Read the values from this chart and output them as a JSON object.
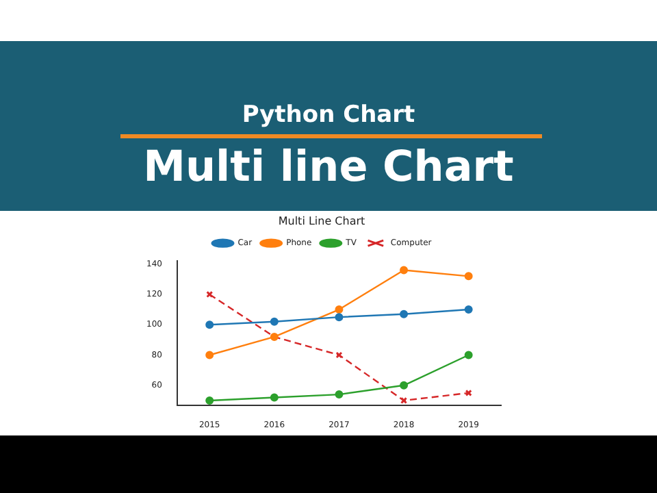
{
  "chart_data": {
    "type": "line",
    "title": "Multi Line Chart",
    "annotations": [
      "Python Chart",
      "Multi line Chart"
    ],
    "categories": [
      "2015",
      "2016",
      "2017",
      "2018",
      "2019"
    ],
    "series": [
      {
        "name": "Car",
        "color": "#1f77b4",
        "values": [
          100,
          102,
          105,
          107,
          110
        ],
        "marker": "circle",
        "line_style": "solid"
      },
      {
        "name": "Phone",
        "color": "#ff7f0e",
        "values": [
          80,
          92,
          110,
          136,
          132
        ],
        "marker": "circle",
        "line_style": "solid"
      },
      {
        "name": "TV",
        "color": "#2ca02c",
        "values": [
          50,
          52,
          54,
          60,
          80
        ],
        "marker": "circle",
        "line_style": "solid"
      },
      {
        "name": "Computer",
        "color": "#d62728",
        "values": [
          120,
          92,
          80,
          50,
          55
        ],
        "marker": "cross",
        "line_style": "dashed"
      }
    ],
    "ylim": [
      47,
      142
    ],
    "yticks": [
      60,
      80,
      100,
      120,
      140
    ],
    "grid": false,
    "legend": "top"
  }
}
